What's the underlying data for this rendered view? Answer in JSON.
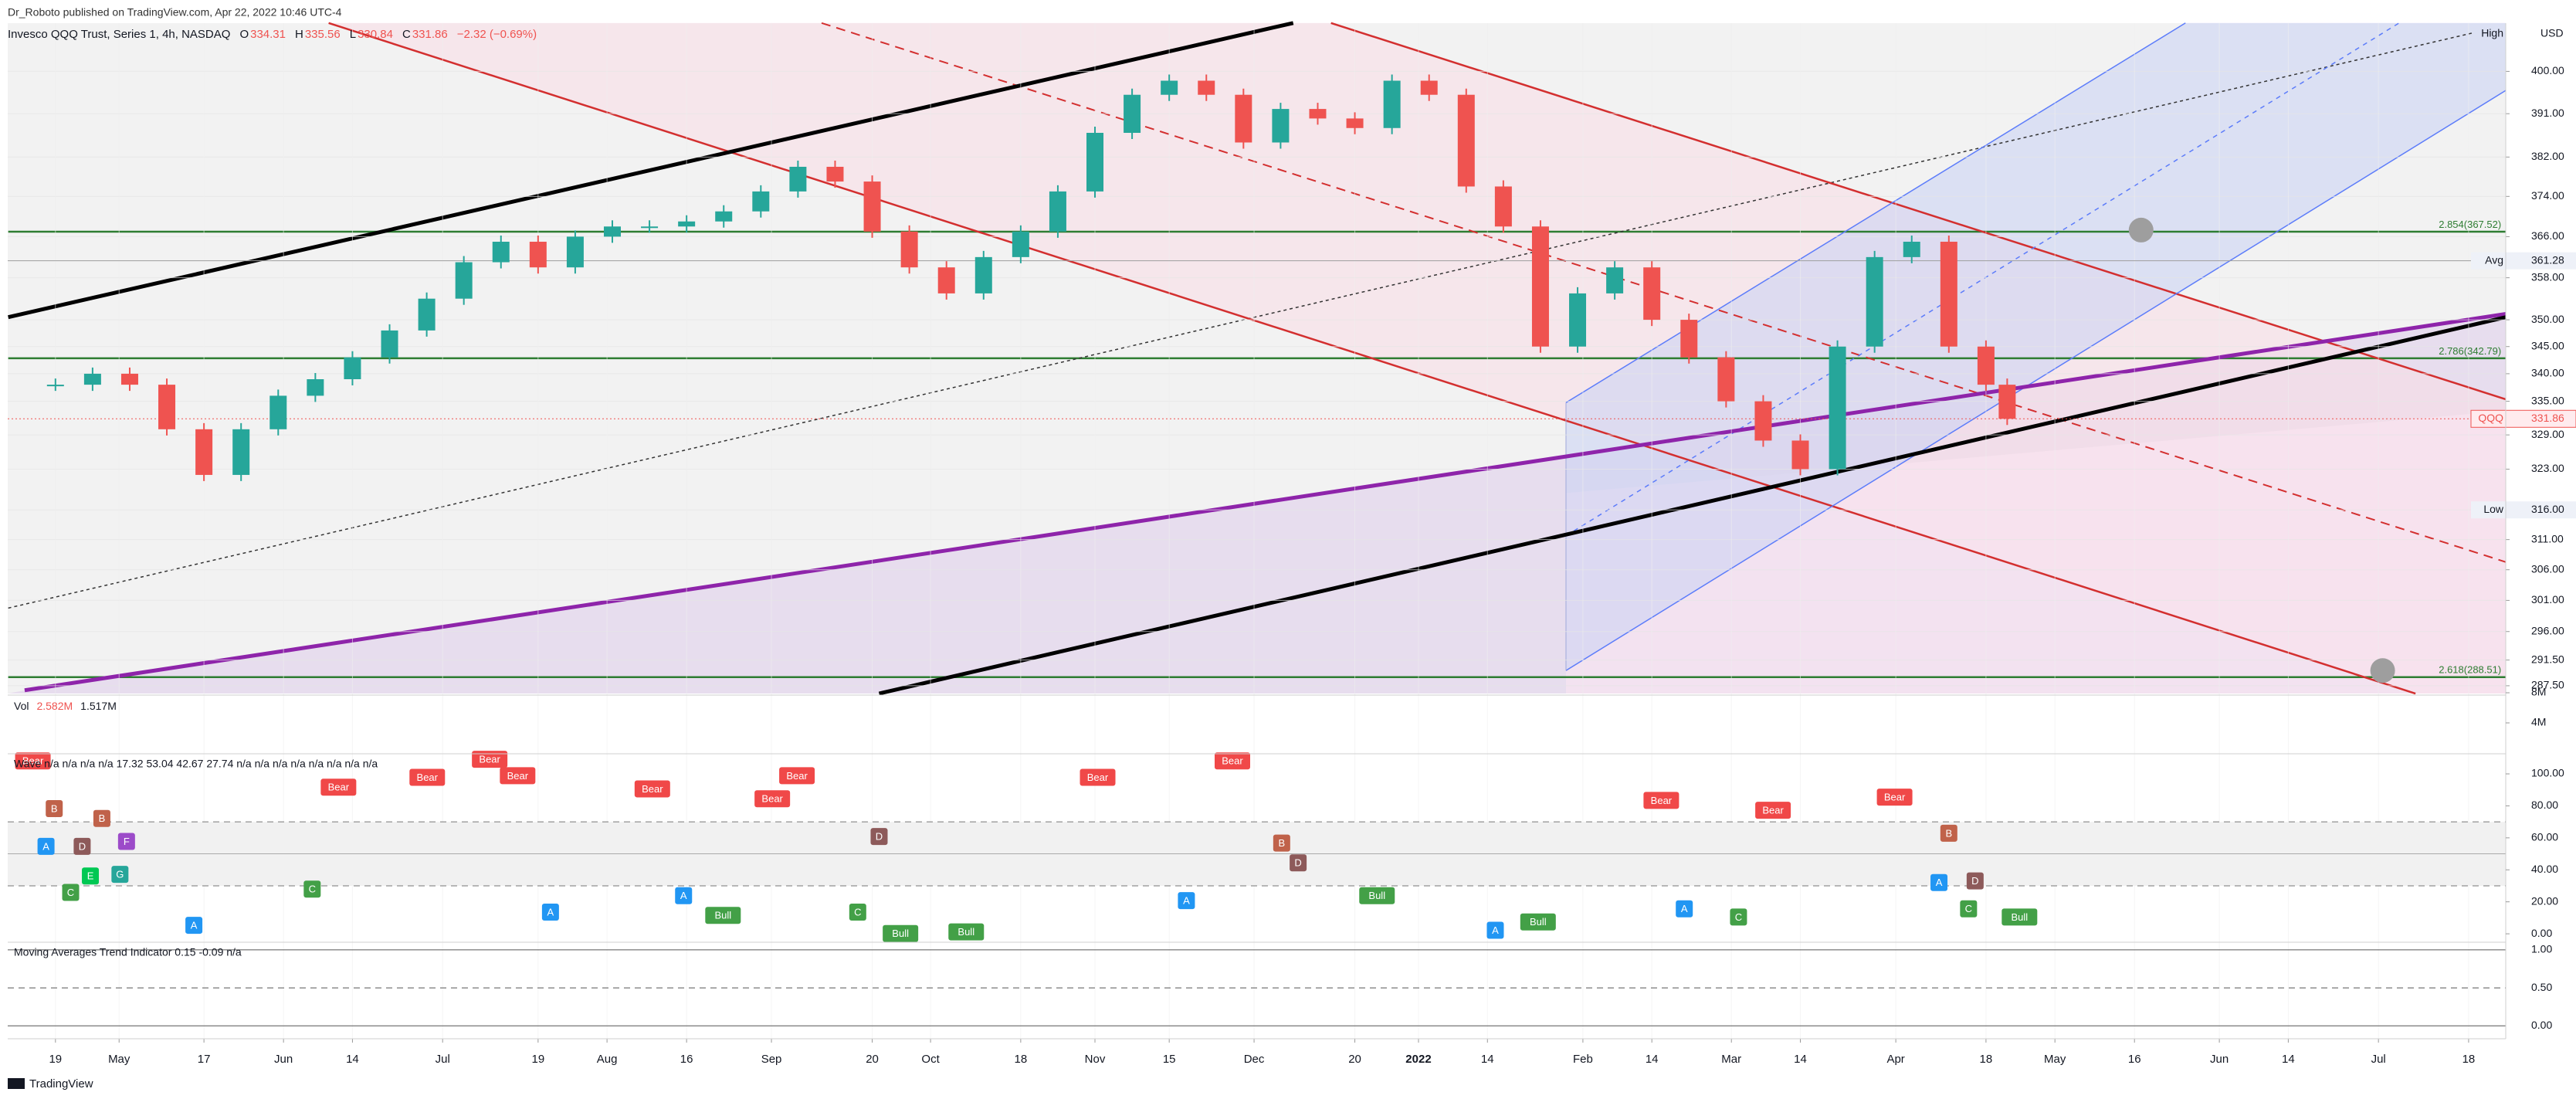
{
  "header": {
    "publisher": "Dr_Roboto published on TradingView.com, Apr 22, 2022 10:46 UTC-4",
    "symbol": "Invesco QQQ Trust, Series 1, 4h, NASDAQ",
    "ohlc": [
      "O",
      "334.31",
      "H",
      "335.56",
      "L",
      "330.84",
      "C",
      "331.86",
      "−2.32 (−0.69%)"
    ]
  },
  "chart_data": {
    "type": "candle",
    "log_scale": true,
    "grid": true,
    "up_color": "#26a69a",
    "down_color": "#ef5350",
    "x": [
      0,
      7,
      14,
      21,
      28,
      35,
      42,
      49,
      56,
      63,
      70,
      77,
      84,
      91,
      98,
      105,
      112,
      119,
      126,
      133,
      140,
      147,
      154,
      161,
      168,
      175,
      182,
      189,
      196,
      203,
      210,
      217,
      224,
      231,
      238,
      245,
      252,
      259,
      266,
      273,
      280,
      287,
      294,
      301,
      308,
      315,
      322,
      329,
      336,
      343,
      350,
      357,
      364,
      368
    ],
    "values": [
      338,
      340,
      338,
      330,
      322,
      330,
      336,
      339,
      343,
      348,
      354,
      361,
      365,
      360,
      366,
      368,
      368,
      369,
      371,
      375,
      380,
      377,
      367,
      360,
      355,
      362,
      367,
      375,
      387,
      395,
      398,
      395,
      385,
      392,
      390,
      388,
      398,
      395,
      376,
      368,
      345,
      355,
      360,
      350,
      343,
      335,
      328,
      323,
      345,
      362,
      365,
      345,
      338,
      331.86
    ],
    "xlim": [
      -9,
      462
    ],
    "xticks": [
      {
        "value": 0,
        "label": "19"
      },
      {
        "value": 12,
        "label": "May"
      },
      {
        "value": 28,
        "label": "17"
      },
      {
        "value": 43,
        "label": "Jun"
      },
      {
        "value": 56,
        "label": "14"
      },
      {
        "value": 73,
        "label": "Jul"
      },
      {
        "value": 91,
        "label": "19"
      },
      {
        "value": 104,
        "label": "Aug"
      },
      {
        "value": 119,
        "label": "16"
      },
      {
        "value": 135,
        "label": "Sep"
      },
      {
        "value": 154,
        "label": "20"
      },
      {
        "value": 165,
        "label": "Oct"
      },
      {
        "value": 182,
        "label": "18"
      },
      {
        "value": 196,
        "label": "Nov"
      },
      {
        "value": 210,
        "label": "15"
      },
      {
        "value": 226,
        "label": "Dec"
      },
      {
        "value": 245,
        "label": "20"
      },
      {
        "value": 257,
        "label": "2022"
      },
      {
        "value": 270,
        "label": "14"
      },
      {
        "value": 288,
        "label": "Feb"
      },
      {
        "value": 301,
        "label": "14"
      },
      {
        "value": 316,
        "label": "Mar"
      },
      {
        "value": 329,
        "label": "14"
      },
      {
        "value": 347,
        "label": "Apr"
      },
      {
        "value": 364,
        "label": "18"
      },
      {
        "value": 377,
        "label": "May"
      },
      {
        "value": 392,
        "label": "16"
      },
      {
        "value": 408,
        "label": "Jun"
      },
      {
        "value": 421,
        "label": "14"
      },
      {
        "value": 438,
        "label": "Jul"
      },
      {
        "value": 455,
        "label": "18"
      }
    ],
    "ylim": [
      286.3,
      410.5
    ],
    "yticks": [
      {
        "value": 287.5,
        "label": "287.50"
      },
      {
        "value": 291.5,
        "label": "291.50"
      },
      {
        "value": 296,
        "label": "296.00"
      },
      {
        "value": 301,
        "label": "301.00"
      },
      {
        "value": 306,
        "label": "306.00"
      },
      {
        "value": 311,
        "label": "311.00"
      },
      {
        "value": 316,
        "label": "316.00"
      },
      {
        "value": 323,
        "label": "323.00"
      },
      {
        "value": 329,
        "label": "329.00"
      },
      {
        "value": 335,
        "label": "335.00"
      },
      {
        "value": 340,
        "label": "340.00"
      },
      {
        "value": 345,
        "label": "345.00"
      },
      {
        "value": 350,
        "label": "350.00"
      },
      {
        "value": 358,
        "label": "358.00"
      },
      {
        "value": 366,
        "label": "366.00"
      },
      {
        "value": 374,
        "label": "374.00"
      },
      {
        "value": 382,
        "label": "382.00"
      },
      {
        "value": 391,
        "label": "391.00"
      },
      {
        "value": 400,
        "label": "400.00"
      }
    ],
    "currency": "USD",
    "price_labels": [
      {
        "name": "High"
      },
      {
        "name": "Avg",
        "price": 361.28
      },
      {
        "name": "QQQ",
        "price": 331.86
      },
      {
        "name": "Low",
        "price": {
          "value": 316,
          "label": "316.00"
        }
      }
    ],
    "fib_labels": [
      "2.854(367.52)",
      "2.786(342.79)",
      "2.618(288.51)"
    ]
  },
  "volume_pane": {
    "legend": [
      "Vol",
      "2.582M",
      "1.517M"
    ],
    "ylim": [
      0,
      8000000
    ],
    "yticks": [
      {
        "value": 8000000,
        "label": "8M"
      },
      {
        "value": 4000000,
        "label": "4M"
      }
    ]
  },
  "oscillator_pane": {
    "legend": "Wave  n/a  n/a  n/a  n/a  17.32  53.04  42.67  27.74  n/a  n/a  n/a  n/a  n/a  n/a  n/a  n/a",
    "ylim": [
      -4.3,
      111.6
    ],
    "yticks": [
      {
        "value": 100,
        "label": "100.00"
      },
      {
        "value": 80,
        "label": "80.00"
      },
      {
        "value": 60,
        "label": "60.00"
      },
      {
        "value": 40,
        "label": "40.00"
      },
      {
        "value": 20,
        "label": "20.00"
      },
      {
        "value": 0,
        "label": "0.00"
      }
    ],
    "markers": [
      "Bear",
      "B",
      "D",
      "C",
      "A",
      "E",
      "F",
      "G",
      "B",
      "Bear",
      "Bear",
      "Bear",
      "Bear",
      "Bear",
      "Bear",
      "Bear",
      "Bear",
      "Bear",
      "Bear",
      "Bear",
      "Bear",
      "Bull",
      "Bull",
      "Bull",
      "Bull",
      "Bull",
      "Bull",
      "A",
      "A",
      "A",
      "A",
      "A",
      "A",
      "A",
      "C",
      "C",
      "C",
      "C",
      "D",
      "D",
      "D",
      "B",
      "B"
    ]
  },
  "trend_pane": {
    "legend": "Moving Averages Trend Indicator  0.15  -0.09  n/a",
    "ylim": [
      -0.17,
      1.08
    ],
    "yticks": [
      {
        "value": 1,
        "label": "1.00"
      },
      {
        "value": 0.5,
        "label": "0.50"
      },
      {
        "value": 0,
        "label": "0.00"
      }
    ]
  },
  "footer": {
    "brand": "TradingView"
  }
}
